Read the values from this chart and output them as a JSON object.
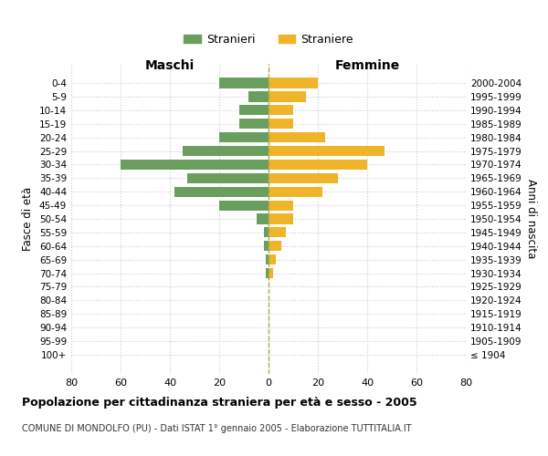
{
  "age_groups": [
    "0-4",
    "5-9",
    "10-14",
    "15-19",
    "20-24",
    "25-29",
    "30-34",
    "35-39",
    "40-44",
    "45-49",
    "50-54",
    "55-59",
    "60-64",
    "65-69",
    "70-74",
    "75-79",
    "80-84",
    "85-89",
    "90-94",
    "95-99",
    "100+"
  ],
  "birth_years": [
    "2000-2004",
    "1995-1999",
    "1990-1994",
    "1985-1989",
    "1980-1984",
    "1975-1979",
    "1970-1974",
    "1965-1969",
    "1960-1964",
    "1955-1959",
    "1950-1954",
    "1945-1949",
    "1940-1944",
    "1935-1939",
    "1930-1934",
    "1925-1929",
    "1920-1924",
    "1915-1919",
    "1910-1914",
    "1905-1909",
    "≤ 1904"
  ],
  "maschi": [
    20,
    8,
    12,
    12,
    20,
    35,
    60,
    33,
    38,
    20,
    5,
    2,
    2,
    1,
    1,
    0,
    0,
    0,
    0,
    0,
    0
  ],
  "femmine": [
    20,
    15,
    10,
    10,
    23,
    47,
    40,
    28,
    22,
    10,
    10,
    7,
    5,
    3,
    2,
    0,
    0,
    0,
    0,
    0,
    0
  ],
  "color_maschi": "#6a9e5e",
  "color_femmine": "#f0b429",
  "title": "Popolazione per cittadinanza straniera per età e sesso - 2005",
  "subtitle": "COMUNE DI MONDOLFO (PU) - Dati ISTAT 1° gennaio 2005 - Elaborazione TUTTITALIA.IT",
  "xlabel_left": "Maschi",
  "xlabel_right": "Femmine",
  "ylabel_left": "Fasce di età",
  "ylabel_right": "Anni di nascita",
  "legend_maschi": "Stranieri",
  "legend_femmine": "Straniere",
  "xlim": 80,
  "background_color": "#ffffff",
  "grid_color": "#cccccc"
}
